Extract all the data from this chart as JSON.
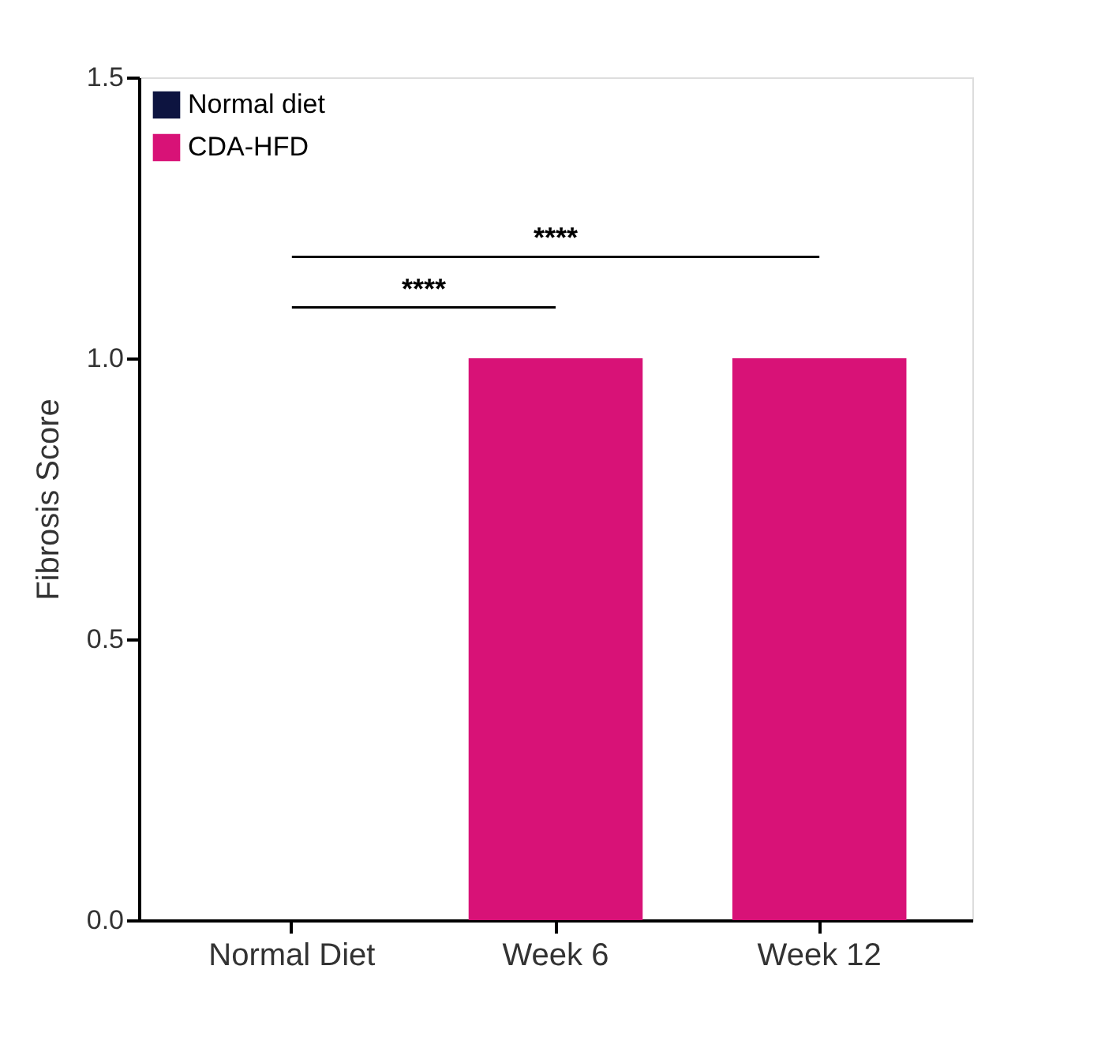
{
  "chart_data": {
    "type": "bar",
    "ylabel": "Fibrosis Score",
    "categories": [
      "Normal Diet",
      "Week 6",
      "Week 12"
    ],
    "series": [
      {
        "name": "Normal diet",
        "color": "#0d1440",
        "values": [
          0,
          null,
          null
        ]
      },
      {
        "name": "CDA-HFD",
        "color": "#d81277",
        "values": [
          null,
          1,
          1
        ]
      }
    ],
    "ylim": [
      0,
      1.5
    ],
    "yticks": [
      {
        "value": 0,
        "label": "0.0"
      },
      {
        "value": 0.5,
        "label": "0.5"
      },
      {
        "value": 1,
        "label": "1.0"
      },
      {
        "value": 1.5,
        "label": "1.5"
      }
    ],
    "grid": false,
    "legend": "top left",
    "annotations": [
      "****",
      "****"
    ]
  }
}
